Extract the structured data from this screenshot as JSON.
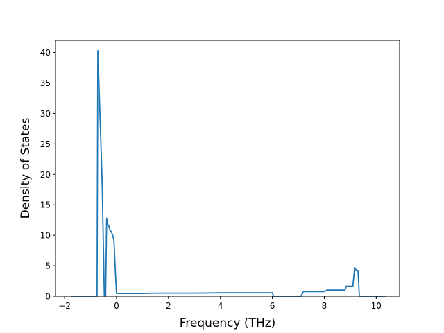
{
  "chart_data": {
    "type": "line",
    "title": "",
    "xlabel": "Frequency (THz)",
    "ylabel": "Density of States",
    "xlim": [
      -2.35,
      10.9
    ],
    "ylim": [
      0,
      42
    ],
    "xticks": [
      -2,
      0,
      2,
      4,
      6,
      8,
      10
    ],
    "yticks": [
      0,
      5,
      10,
      15,
      20,
      25,
      30,
      35,
      40
    ],
    "xtick_labels": [
      "−2",
      "0",
      "2",
      "4",
      "6",
      "8",
      "10"
    ],
    "ytick_labels": [
      "0",
      "5",
      "10",
      "15",
      "20",
      "25",
      "30",
      "35",
      "40"
    ],
    "grid": false,
    "legend": false,
    "series": [
      {
        "color": "#1f77b4",
        "x": [
          -1.75,
          -0.75,
          -0.72,
          -0.6,
          -0.55,
          -0.47,
          -0.42,
          -0.38,
          -0.35,
          -0.3,
          -0.25,
          -0.2,
          -0.15,
          -0.1,
          -0.05,
          0.0,
          0.3,
          1.0,
          1.5,
          2.0,
          3.0,
          4.0,
          4.7,
          5.0,
          5.5,
          6.0,
          6.05,
          7.1,
          7.2,
          7.5,
          8.0,
          8.1,
          8.5,
          8.8,
          8.85,
          9.1,
          9.17,
          9.22,
          9.3,
          9.35,
          10.35
        ],
        "y": [
          0,
          0,
          40.3,
          25.0,
          18.0,
          0,
          0,
          12.8,
          11.8,
          11.6,
          10.8,
          10.6,
          10.0,
          9.2,
          4.5,
          0.45,
          0.45,
          0.45,
          0.5,
          0.5,
          0.5,
          0.55,
          0.55,
          0.55,
          0.55,
          0.55,
          0,
          0,
          0.75,
          0.75,
          0.75,
          1.0,
          1.0,
          1.0,
          1.65,
          1.65,
          4.7,
          4.3,
          4.2,
          0,
          0
        ]
      }
    ]
  }
}
